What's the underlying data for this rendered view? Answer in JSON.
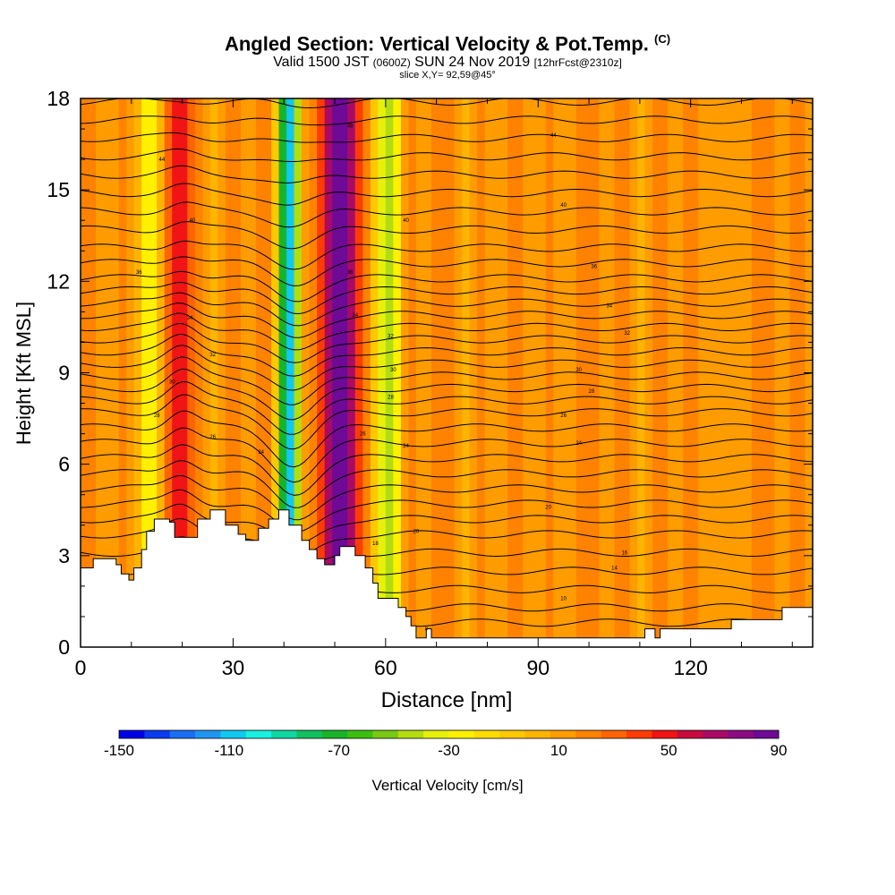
{
  "title": "Angled Section: Vertical Velocity & Pot.Temp.",
  "title_unit": "(C)",
  "subtitle_main": "Valid 1500 JST",
  "subtitle_zulu": "(0600Z)",
  "subtitle_date": "SUN 24 Nov 2019",
  "subtitle_fcst": "[12hrFcst@2310z]",
  "slice_info": "slice X,Y= 92,59@45°",
  "chart_data": {
    "type": "heatmap",
    "xlabel": "Distance [nm]",
    "ylabel": "Height [Kft MSL]",
    "xlim": [
      0,
      144
    ],
    "ylim": [
      0,
      18
    ],
    "xticks": [
      0,
      30,
      60,
      90,
      120
    ],
    "yticks": [
      0,
      3,
      6,
      9,
      12,
      15,
      18
    ],
    "colorbar": {
      "label": "Vertical Velocity [cm/s]",
      "ticks": [
        -150,
        -110,
        -70,
        -30,
        10,
        50,
        90
      ],
      "range": [
        -150,
        90
      ],
      "colors": [
        "#0000e6",
        "#0a3cf0",
        "#1a6ef4",
        "#1e96f0",
        "#10c8f0",
        "#18f0e0",
        "#10d8a0",
        "#10c060",
        "#18b428",
        "#3cbe10",
        "#78c814",
        "#b4dc10",
        "#e6f00a",
        "#fff000",
        "#ffdc00",
        "#ffc800",
        "#ffb400",
        "#ff9c00",
        "#ff8200",
        "#ff6400",
        "#ff3c00",
        "#f01414",
        "#c80a3c",
        "#aa0a64",
        "#8c0a82",
        "#6e0a96"
      ]
    },
    "vertical_velocity_features": [
      {
        "x": 14,
        "width": 2.2,
        "w": -45
      },
      {
        "x": 19.5,
        "width": 2.5,
        "w": 35
      },
      {
        "x": 41,
        "width": 2,
        "w": -120
      },
      {
        "x": 51,
        "width": 4,
        "w": 70
      },
      {
        "x": 60,
        "width": 3,
        "w": -55
      }
    ],
    "background_w": 15,
    "terrain_kft": [
      [
        0,
        2.6
      ],
      [
        2.5,
        2.6
      ],
      [
        2.5,
        2.9
      ],
      [
        7,
        2.9
      ],
      [
        7,
        2.7
      ],
      [
        8,
        2.7
      ],
      [
        8,
        2.4
      ],
      [
        9.5,
        2.4
      ],
      [
        9.5,
        2.2
      ],
      [
        10.5,
        2.2
      ],
      [
        10.5,
        2.6
      ],
      [
        12,
        2.6
      ],
      [
        12,
        3.2
      ],
      [
        13,
        3.2
      ],
      [
        13,
        3.8
      ],
      [
        14.5,
        3.8
      ],
      [
        14.5,
        4.2
      ],
      [
        17.5,
        4.2
      ],
      [
        17.5,
        4.1
      ],
      [
        18.5,
        4.1
      ],
      [
        18.5,
        3.6
      ],
      [
        23,
        3.6
      ],
      [
        23,
        4.2
      ],
      [
        25.5,
        4.2
      ],
      [
        25.5,
        4.5
      ],
      [
        28.5,
        4.5
      ],
      [
        28.5,
        4.0
      ],
      [
        31,
        4.0
      ],
      [
        31,
        3.7
      ],
      [
        32.5,
        3.7
      ],
      [
        32.5,
        3.5
      ],
      [
        35,
        3.5
      ],
      [
        35,
        3.9
      ],
      [
        37,
        3.9
      ],
      [
        37,
        4.2
      ],
      [
        39,
        4.2
      ],
      [
        39,
        4.5
      ],
      [
        41,
        4.5
      ],
      [
        41,
        4.0
      ],
      [
        43.5,
        4.0
      ],
      [
        43.5,
        3.5
      ],
      [
        45,
        3.5
      ],
      [
        45,
        3.2
      ],
      [
        46.5,
        3.2
      ],
      [
        46.5,
        2.9
      ],
      [
        48,
        2.9
      ],
      [
        48,
        2.7
      ],
      [
        50,
        2.7
      ],
      [
        50,
        3.0
      ],
      [
        51,
        3.0
      ],
      [
        51,
        3.3
      ],
      [
        54,
        3.3
      ],
      [
        54,
        3.0
      ],
      [
        56,
        3.0
      ],
      [
        56,
        2.6
      ],
      [
        57.5,
        2.6
      ],
      [
        57.5,
        2.1
      ],
      [
        58.5,
        2.1
      ],
      [
        58.5,
        1.6
      ],
      [
        62.5,
        1.6
      ],
      [
        62.5,
        1.3
      ],
      [
        64,
        1.3
      ],
      [
        64,
        1.0
      ],
      [
        65,
        1.0
      ],
      [
        65,
        0.7
      ],
      [
        66,
        0.7
      ],
      [
        66,
        0.3
      ],
      [
        68,
        0.3
      ],
      [
        68,
        0.6
      ],
      [
        69,
        0.6
      ],
      [
        69,
        0.3
      ],
      [
        111,
        0.3
      ],
      [
        111,
        0.6
      ],
      [
        113,
        0.6
      ],
      [
        113,
        0.3
      ],
      [
        114,
        0.3
      ],
      [
        114,
        0.6
      ],
      [
        128,
        0.6
      ],
      [
        128,
        0.9
      ],
      [
        138,
        0.9
      ],
      [
        138,
        1.3
      ],
      [
        144,
        1.3
      ],
      [
        144,
        0
      ],
      [
        0,
        0
      ]
    ],
    "isentropes_base_kft": [
      0.8,
      1.3,
      1.9,
      2.5,
      3.1,
      3.7,
      4.2,
      4.7,
      5.2,
      5.7,
      6.2,
      6.7,
      7.2,
      7.7,
      8.1,
      8.5,
      8.9,
      9.3,
      9.7,
      10.1,
      10.5,
      10.9,
      11.3,
      11.7,
      12.1,
      12.6,
      13.1,
      13.7,
      14.3,
      14.9,
      15.5,
      16.1,
      16.7,
      17.3,
      17.9
    ],
    "contour_labels": [
      {
        "x": 16,
        "y": 16.0,
        "text": "44"
      },
      {
        "x": 22,
        "y": 14.0,
        "text": "40"
      },
      {
        "x": 11.5,
        "y": 12.3,
        "text": "36"
      },
      {
        "x": 21.5,
        "y": 10.8,
        "text": "34"
      },
      {
        "x": 26,
        "y": 9.6,
        "text": "32"
      },
      {
        "x": 18,
        "y": 8.7,
        "text": "30"
      },
      {
        "x": 15,
        "y": 7.6,
        "text": "28"
      },
      {
        "x": 26,
        "y": 6.9,
        "text": "26"
      },
      {
        "x": 35.5,
        "y": 6.4,
        "text": "24"
      },
      {
        "x": 53,
        "y": 17.1,
        "text": "48"
      },
      {
        "x": 64,
        "y": 14.0,
        "text": "40"
      },
      {
        "x": 53,
        "y": 12.3,
        "text": "36"
      },
      {
        "x": 54,
        "y": 10.9,
        "text": "34"
      },
      {
        "x": 61,
        "y": 10.2,
        "text": "32"
      },
      {
        "x": 61.5,
        "y": 9.1,
        "text": "30"
      },
      {
        "x": 61,
        "y": 8.2,
        "text": "28"
      },
      {
        "x": 55.5,
        "y": 7.0,
        "text": "26"
      },
      {
        "x": 64,
        "y": 6.6,
        "text": "24"
      },
      {
        "x": 66,
        "y": 3.8,
        "text": "20"
      },
      {
        "x": 58,
        "y": 3.4,
        "text": "18"
      },
      {
        "x": 68,
        "y": 0.6,
        "text": "8"
      },
      {
        "x": 93,
        "y": 16.8,
        "text": "44"
      },
      {
        "x": 95,
        "y": 14.5,
        "text": "40"
      },
      {
        "x": 101,
        "y": 12.5,
        "text": "36"
      },
      {
        "x": 104,
        "y": 11.2,
        "text": "34"
      },
      {
        "x": 107.5,
        "y": 10.3,
        "text": "32"
      },
      {
        "x": 98,
        "y": 9.1,
        "text": "30"
      },
      {
        "x": 100.5,
        "y": 8.4,
        "text": "28"
      },
      {
        "x": 95,
        "y": 7.6,
        "text": "26"
      },
      {
        "x": 98,
        "y": 6.7,
        "text": "24"
      },
      {
        "x": 92,
        "y": 4.6,
        "text": "20"
      },
      {
        "x": 107,
        "y": 3.1,
        "text": "16"
      },
      {
        "x": 105,
        "y": 2.6,
        "text": "14"
      },
      {
        "x": 95,
        "y": 1.6,
        "text": "10"
      }
    ]
  }
}
